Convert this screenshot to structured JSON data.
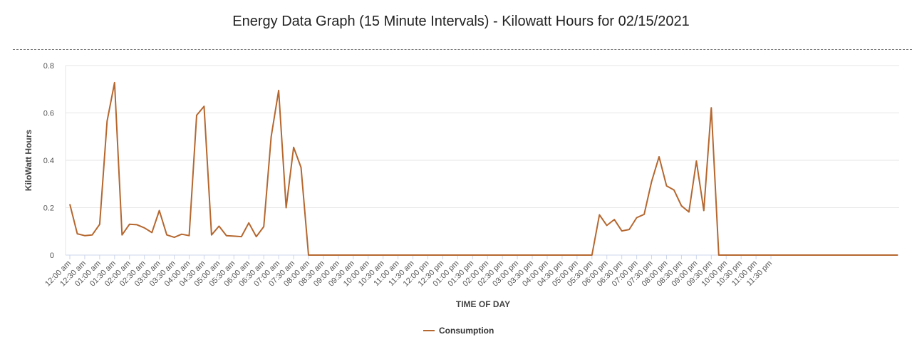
{
  "colors": {
    "series": "#b5672f",
    "grid": "#e6e6e6",
    "axis": "#ccd6eb"
  },
  "chart_data": {
    "type": "line",
    "title": "Energy Data Graph (15 Minute Intervals) - Kilowatt Hours for 02/15/2021",
    "xlabel": "TIME OF DAY",
    "ylabel": "KiloWatt Hours",
    "ylim": [
      0,
      0.8
    ],
    "yticks": [
      "0",
      "0.2",
      "0.4",
      "0.6",
      "0.8"
    ],
    "grid": "horizontal",
    "legend_position": "bottom-center",
    "x_tick_labels": [
      "12:00 am",
      "12:30 am",
      "01:00 am",
      "01:30 am",
      "02:00 am",
      "02:30 am",
      "03:00 am",
      "03:30 am",
      "04:00 am",
      "04:30 am",
      "05:00 am",
      "05:30 am",
      "06:00 am",
      "06:30 am",
      "07:00 am",
      "07:30 am",
      "08:00 am",
      "08:30 am",
      "09:00 am",
      "09:30 am",
      "10:00 am",
      "10:30 am",
      "11:00 am",
      "11:30 am",
      "12:00 pm",
      "12:30 pm",
      "01:00 pm",
      "01:30 pm",
      "02:00 pm",
      "02:30 pm",
      "03:00 pm",
      "03:30 pm",
      "04:00 pm",
      "04:30 pm",
      "05:00 pm",
      "05:30 pm",
      "06:00 pm",
      "06:30 pm",
      "07:00 pm",
      "07:30 pm",
      "08:00 pm",
      "08:30 pm",
      "09:00 pm",
      "09:30 pm",
      "10:00 pm",
      "10:30 pm",
      "11:00 pm",
      "11:30 pm"
    ],
    "x_interval_minutes": 15,
    "series": [
      {
        "name": "Consumption",
        "values": [
          0.215,
          0.09,
          0.082,
          0.085,
          0.13,
          0.565,
          0.728,
          0.085,
          0.13,
          0.128,
          0.115,
          0.095,
          0.188,
          0.085,
          0.075,
          0.088,
          0.082,
          0.59,
          0.628,
          0.085,
          0.122,
          0.082,
          0.08,
          0.078,
          0.136,
          0.078,
          0.12,
          0.5,
          0.695,
          0.2,
          0.455,
          0.37,
          0,
          0,
          0,
          0,
          0,
          0,
          0,
          0,
          0,
          0,
          0,
          0,
          0,
          0,
          0,
          0,
          0,
          0,
          0,
          0,
          0,
          0,
          0,
          0,
          0,
          0,
          0,
          0,
          0,
          0,
          0,
          0,
          0,
          0,
          0,
          0,
          0,
          0,
          0,
          0.17,
          0.125,
          0.15,
          0.102,
          0.108,
          0.158,
          0.172,
          0.31,
          0.415,
          0.292,
          0.275,
          0.208,
          0.182,
          0.397,
          0.188,
          0.622,
          0,
          0,
          0,
          0,
          0,
          0,
          0,
          0,
          0,
          0,
          0,
          0,
          0,
          0,
          0,
          0,
          0,
          0,
          0,
          0,
          0,
          0,
          0,
          0,
          0
        ]
      }
    ]
  }
}
